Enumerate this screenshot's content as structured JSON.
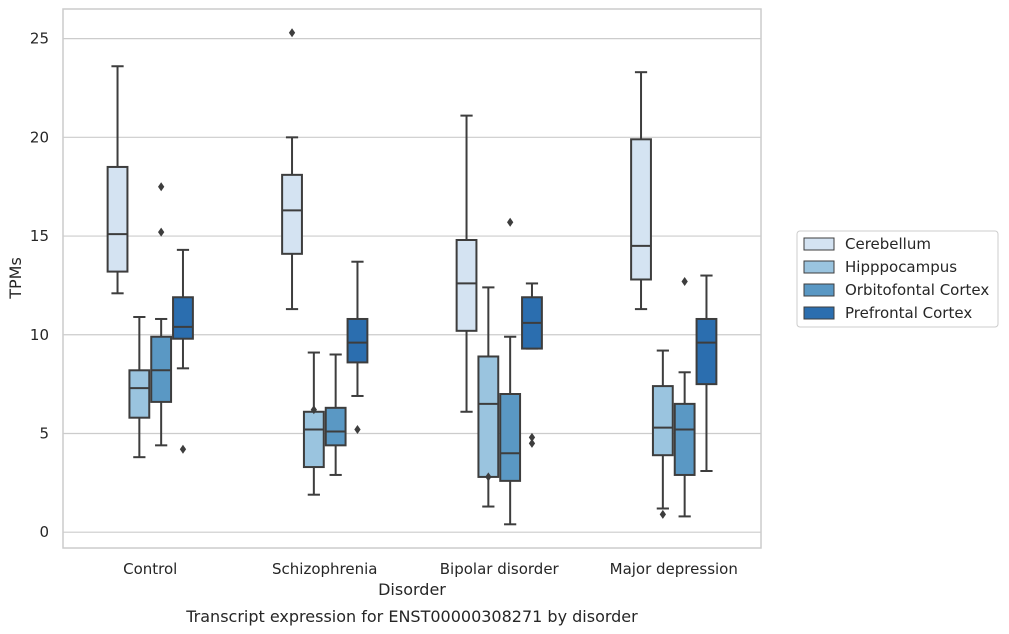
{
  "chart_data": {
    "type": "box",
    "caption": "Transcript expression for ENST00000308271 by disorder",
    "xlabel": "Disorder",
    "ylabel": "TPMs",
    "ylim": [
      -0.8,
      26.5
    ],
    "yticks": [
      0,
      5,
      10,
      15,
      20,
      25
    ],
    "grid": "horizontal",
    "legend_position": "right",
    "categories": [
      "Control",
      "Schizophrenia",
      "Bipolar disorder",
      "Major depression"
    ],
    "series": [
      {
        "name": "Cerebellum",
        "color": "#d4e3f2",
        "boxes": [
          {
            "whisker_low": 12.1,
            "q1": 13.2,
            "median": 15.1,
            "q3": 18.5,
            "whisker_high": 23.6,
            "outliers": []
          },
          {
            "whisker_low": 11.3,
            "q1": 14.1,
            "median": 16.3,
            "q3": 18.1,
            "whisker_high": 20.0,
            "outliers": [
              25.3
            ]
          },
          {
            "whisker_low": 6.1,
            "q1": 10.2,
            "median": 12.6,
            "q3": 14.8,
            "whisker_high": 21.1,
            "outliers": []
          },
          {
            "whisker_low": 11.3,
            "q1": 12.8,
            "median": 14.5,
            "q3": 19.9,
            "whisker_high": 23.3,
            "outliers": []
          }
        ]
      },
      {
        "name": "Hipppocampus",
        "color": "#9ac4df",
        "boxes": [
          {
            "whisker_low": 3.8,
            "q1": 5.8,
            "median": 7.3,
            "q3": 8.2,
            "whisker_high": 10.9,
            "outliers": []
          },
          {
            "whisker_low": 1.9,
            "q1": 3.3,
            "median": 5.2,
            "q3": 6.1,
            "whisker_high": 9.1,
            "outliers": [
              6.2
            ]
          },
          {
            "whisker_low": 1.3,
            "q1": 2.8,
            "median": 6.5,
            "q3": 8.9,
            "whisker_high": 12.4,
            "outliers": [
              2.8
            ]
          },
          {
            "whisker_low": 1.2,
            "q1": 3.9,
            "median": 5.3,
            "q3": 7.4,
            "whisker_high": 9.2,
            "outliers": [
              0.9
            ]
          }
        ]
      },
      {
        "name": "Orbitofontal Cortex",
        "color": "#5a98c4",
        "boxes": [
          {
            "whisker_low": 4.4,
            "q1": 6.6,
            "median": 8.2,
            "q3": 9.9,
            "whisker_high": 10.8,
            "outliers": [
              17.5,
              15.2
            ]
          },
          {
            "whisker_low": 2.9,
            "q1": 4.4,
            "median": 5.1,
            "q3": 6.3,
            "whisker_high": 9.0,
            "outliers": []
          },
          {
            "whisker_low": 0.4,
            "q1": 2.6,
            "median": 4.0,
            "q3": 7.0,
            "whisker_high": 9.9,
            "outliers": [
              15.7
            ]
          },
          {
            "whisker_low": 0.8,
            "q1": 2.9,
            "median": 5.2,
            "q3": 6.5,
            "whisker_high": 8.1,
            "outliers": [
              12.7
            ]
          }
        ]
      },
      {
        "name": "Prefrontal Cortex",
        "color": "#2b6eaf",
        "boxes": [
          {
            "whisker_low": 8.3,
            "q1": 9.8,
            "median": 10.4,
            "q3": 11.9,
            "whisker_high": 14.3,
            "outliers": [
              4.2
            ]
          },
          {
            "whisker_low": 6.9,
            "q1": 8.6,
            "median": 9.6,
            "q3": 10.8,
            "whisker_high": 13.7,
            "outliers": [
              5.2
            ]
          },
          {
            "whisker_low": 9.3,
            "q1": 9.3,
            "median": 10.6,
            "q3": 11.9,
            "whisker_high": 12.6,
            "outliers": [
              4.8,
              4.5
            ]
          },
          {
            "whisker_low": 3.1,
            "q1": 7.5,
            "median": 9.6,
            "q3": 10.8,
            "whisker_high": 13.0,
            "outliers": []
          }
        ]
      }
    ]
  }
}
